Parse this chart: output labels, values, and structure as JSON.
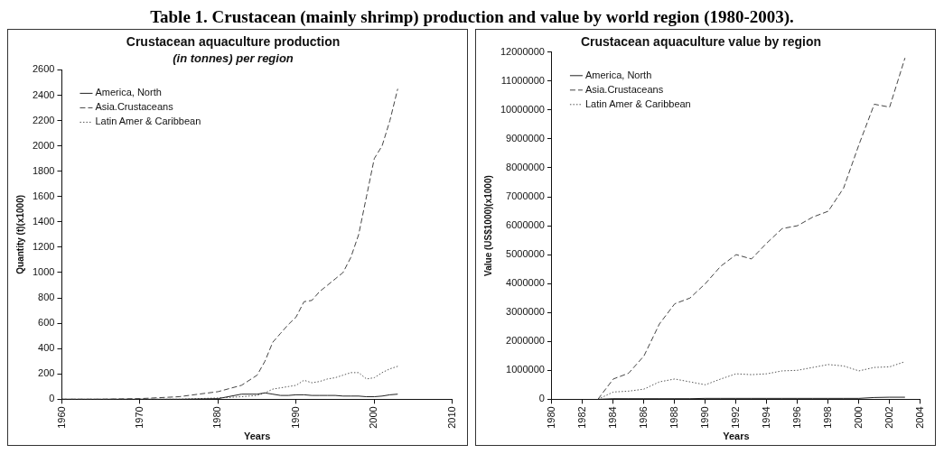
{
  "chart_data": [
    {
      "type": "line",
      "title": "Crustacean aquaculture production",
      "subtitle": "(in tonnes) per region",
      "xlabel": "Years",
      "ylabel": "Quantity (t)(x1000)",
      "annotations": [
        "Table 1. Crustacean (mainly shrimp) production and value by world region (1980-2003)."
      ],
      "x": [
        1960,
        1965,
        1970,
        1975,
        1980,
        1983,
        1985,
        1986,
        1987,
        1988,
        1989,
        1990,
        1991,
        1992,
        1993,
        1994,
        1995,
        1996,
        1997,
        1998,
        1999,
        2000,
        2001,
        2002,
        2003
      ],
      "series": [
        {
          "name": "America, North",
          "color": "#222222",
          "line_style": "solid",
          "values": [
            0,
            0,
            0,
            0,
            5,
            40,
            40,
            50,
            40,
            30,
            30,
            35,
            35,
            30,
            30,
            30,
            30,
            25,
            25,
            25,
            20,
            20,
            25,
            35,
            40
          ]
        },
        {
          "name": "Asia.Crustaceans",
          "color": "#444444",
          "line_style": "dashed",
          "values": [
            0,
            0,
            5,
            20,
            60,
            110,
            190,
            300,
            450,
            520,
            590,
            650,
            770,
            780,
            850,
            900,
            950,
            1000,
            1120,
            1300,
            1600,
            1900,
            2000,
            2200,
            2450
          ]
        },
        {
          "name": "Latin Amer & Caribbean",
          "color": "#555555",
          "line_style": "dotted",
          "values": [
            0,
            0,
            0,
            0,
            10,
            20,
            30,
            50,
            80,
            90,
            100,
            110,
            150,
            130,
            140,
            160,
            170,
            190,
            210,
            210,
            160,
            170,
            210,
            240,
            260
          ]
        }
      ],
      "xlim": [
        1960,
        2010
      ],
      "xticks": [
        1960,
        1970,
        1980,
        1990,
        2000,
        2010
      ],
      "ylim": [
        0,
        2600
      ],
      "yticks": [
        0,
        200,
        400,
        600,
        800,
        1000,
        1200,
        1400,
        1600,
        1800,
        2000,
        2200,
        2400,
        2600
      ],
      "grid": false,
      "legend": "top left",
      "marker": "none"
    },
    {
      "type": "line",
      "title": "Crustacean aquaculture value by region",
      "xlabel": "Years",
      "ylabel": "Value (US$1000)(x1000)",
      "x": [
        1983,
        1984,
        1985,
        1986,
        1987,
        1988,
        1989,
        1990,
        1991,
        1992,
        1993,
        1994,
        1995,
        1996,
        1997,
        1998,
        1999,
        2000,
        2001,
        2002,
        2003
      ],
      "series": [
        {
          "name": "America, North",
          "color": "#222222",
          "line_style": "solid",
          "values": [
            0,
            20000,
            20000,
            20000,
            20000,
            20000,
            20000,
            30000,
            30000,
            30000,
            30000,
            30000,
            30000,
            30000,
            30000,
            30000,
            30000,
            30000,
            60000,
            70000,
            70000
          ]
        },
        {
          "name": "Asia.Crustaceans",
          "color": "#444444",
          "line_style": "dashed",
          "values": [
            0,
            700000,
            900000,
            1500000,
            2600000,
            3300000,
            3500000,
            4000000,
            4600000,
            5000000,
            4850000,
            5400000,
            5900000,
            6000000,
            6300000,
            6500000,
            7300000,
            8800000,
            10200000,
            10100000,
            11800000
          ]
        },
        {
          "name": "Latin Amer & Caribbean",
          "color": "#555555",
          "line_style": "dotted",
          "values": [
            0,
            250000,
            280000,
            350000,
            600000,
            700000,
            600000,
            500000,
            700000,
            880000,
            850000,
            880000,
            980000,
            1000000,
            1100000,
            1200000,
            1150000,
            980000,
            1100000,
            1120000,
            1300000
          ]
        }
      ],
      "xlim": [
        1980,
        2004
      ],
      "xticks": [
        1980,
        1982,
        1984,
        1986,
        1988,
        1990,
        1992,
        1994,
        1996,
        1998,
        2000,
        2002,
        2004
      ],
      "ylim": [
        0,
        12000000
      ],
      "yticks": [
        0,
        1000000,
        2000000,
        3000000,
        4000000,
        5000000,
        6000000,
        7000000,
        8000000,
        9000000,
        10000000,
        11000000,
        12000000
      ],
      "grid": false,
      "legend": "top left",
      "marker": "none"
    }
  ]
}
